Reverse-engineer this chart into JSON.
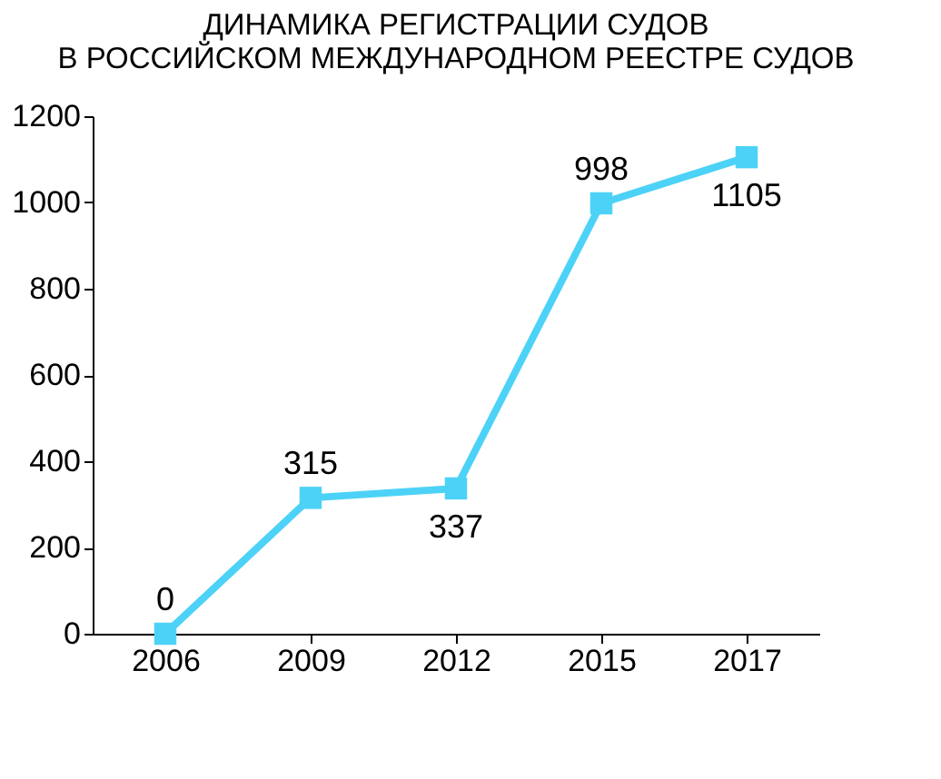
{
  "chart_data": {
    "type": "line",
    "title": "ДИНАМИКА РЕГИСТРАЦИИ СУДОВ\nВ РОССИЙСКОМ МЕЖДУНАРОДНОМ РЕЕСТРЕ СУДОВ",
    "categories": [
      "2006",
      "2009",
      "2012",
      "2015",
      "2017"
    ],
    "series": [
      {
        "color": "#4dd2f7",
        "values": [
          0,
          315,
          337,
          998,
          1105
        ]
      }
    ],
    "ylim": [
      0,
      1200
    ],
    "yticks": [
      0,
      200,
      400,
      600,
      800,
      1000,
      1200
    ],
    "data_labels": true,
    "marker": "square",
    "line_style": "solid"
  }
}
